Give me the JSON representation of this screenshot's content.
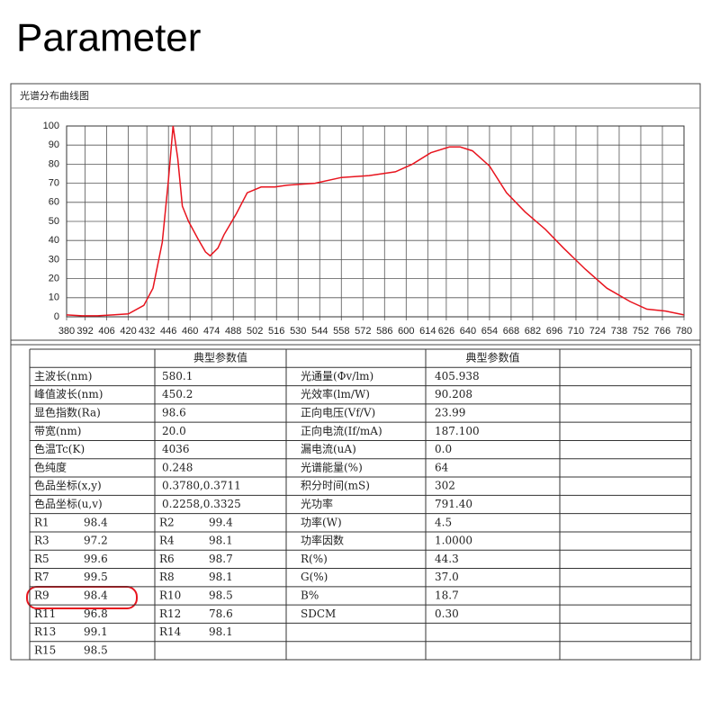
{
  "title": "Parameter",
  "chart_data": {
    "type": "line",
    "title": "光谱分布曲线图",
    "x": [
      380,
      390,
      400,
      410,
      420,
      430,
      436,
      442,
      446,
      449,
      452,
      455,
      459,
      465,
      470,
      473,
      478,
      482,
      490,
      497,
      506,
      515,
      523,
      541,
      558,
      576,
      593,
      604,
      616,
      628,
      635,
      643,
      654,
      665,
      677,
      690,
      702,
      716,
      730,
      745,
      756,
      768,
      780
    ],
    "values": [
      1,
      0.5,
      0.5,
      1,
      1.5,
      6,
      15,
      39,
      72,
      100,
      83,
      58,
      50,
      41,
      34,
      32,
      36,
      43,
      54,
      65,
      68,
      68,
      69,
      70,
      73,
      74,
      76,
      80,
      86,
      89,
      89,
      87,
      79,
      65,
      55,
      46,
      36,
      25,
      15,
      8,
      4,
      3,
      1
    ],
    "color": "#e8141e",
    "xlim": [
      380,
      780
    ],
    "ylim": [
      0,
      100
    ],
    "xticks": [
      380,
      392,
      406,
      420,
      432,
      446,
      460,
      474,
      488,
      502,
      516,
      530,
      544,
      558,
      572,
      586,
      600,
      614,
      626,
      640,
      654,
      668,
      682,
      696,
      710,
      724,
      738,
      752,
      766,
      780
    ],
    "yticks": [
      0,
      10,
      20,
      30,
      40,
      50,
      60,
      70,
      80,
      90,
      100
    ],
    "grid": true
  },
  "table": {
    "header": [
      "典型参数值",
      "典型参数值"
    ],
    "rows": [
      {
        "left": [
          "主波长(nm)",
          "580.1"
        ],
        "right": [
          "光通量(Φv/lm)",
          "405.938"
        ]
      },
      {
        "left": [
          "峰值波长(nm)",
          "450.2"
        ],
        "right": [
          "光效率(lm/W)",
          "90.208"
        ]
      },
      {
        "left": [
          "显色指数(Ra)",
          "98.6"
        ],
        "right": [
          "正向电压(Vf/V)",
          "23.99"
        ]
      },
      {
        "left": [
          "带宽(nm)",
          "20.0"
        ],
        "right": [
          "正向电流(If/mA)",
          "187.100"
        ]
      },
      {
        "left": [
          "色温Tc(K)",
          "4036"
        ],
        "right": [
          "漏电流(uA)",
          "0.0"
        ]
      },
      {
        "left": [
          "色纯度",
          "0.248"
        ],
        "right": [
          "光谱能量(%)",
          "64"
        ]
      },
      {
        "left": [
          "色品坐标(x,y)",
          "0.3780,0.3711"
        ],
        "right": [
          "积分时间(mS)",
          "302"
        ]
      },
      {
        "left": [
          "色品坐标(u,v)",
          "0.2258,0.3325"
        ],
        "right": [
          "光功率",
          "791.40"
        ]
      },
      {
        "r": [
          [
            "R1",
            "98.4"
          ],
          [
            "R2",
            "99.4"
          ]
        ],
        "right": [
          "功率(W)",
          "4.5"
        ]
      },
      {
        "r": [
          [
            "R3",
            "97.2"
          ],
          [
            "R4",
            "98.1"
          ]
        ],
        "right": [
          "功率因数",
          "1.0000"
        ]
      },
      {
        "r": [
          [
            "R5",
            "99.6"
          ],
          [
            "R6",
            "98.7"
          ]
        ],
        "right": [
          "R(%)",
          "44.3"
        ]
      },
      {
        "r": [
          [
            "R7",
            "99.5"
          ],
          [
            "R8",
            "98.1"
          ]
        ],
        "right": [
          "G(%)",
          "37.0"
        ]
      },
      {
        "r": [
          [
            "R9",
            "98.4"
          ],
          [
            "R10",
            "98.5"
          ]
        ],
        "right": [
          "B%",
          "18.7"
        ]
      },
      {
        "r": [
          [
            "R11",
            "96.8"
          ],
          [
            "R12",
            "78.6"
          ]
        ],
        "right": [
          "SDCM",
          "0.30"
        ]
      },
      {
        "r": [
          [
            "R13",
            "99.1"
          ],
          [
            "R14",
            "98.1"
          ]
        ]
      },
      {
        "r": [
          [
            "R15",
            "98.5"
          ]
        ]
      }
    ]
  }
}
